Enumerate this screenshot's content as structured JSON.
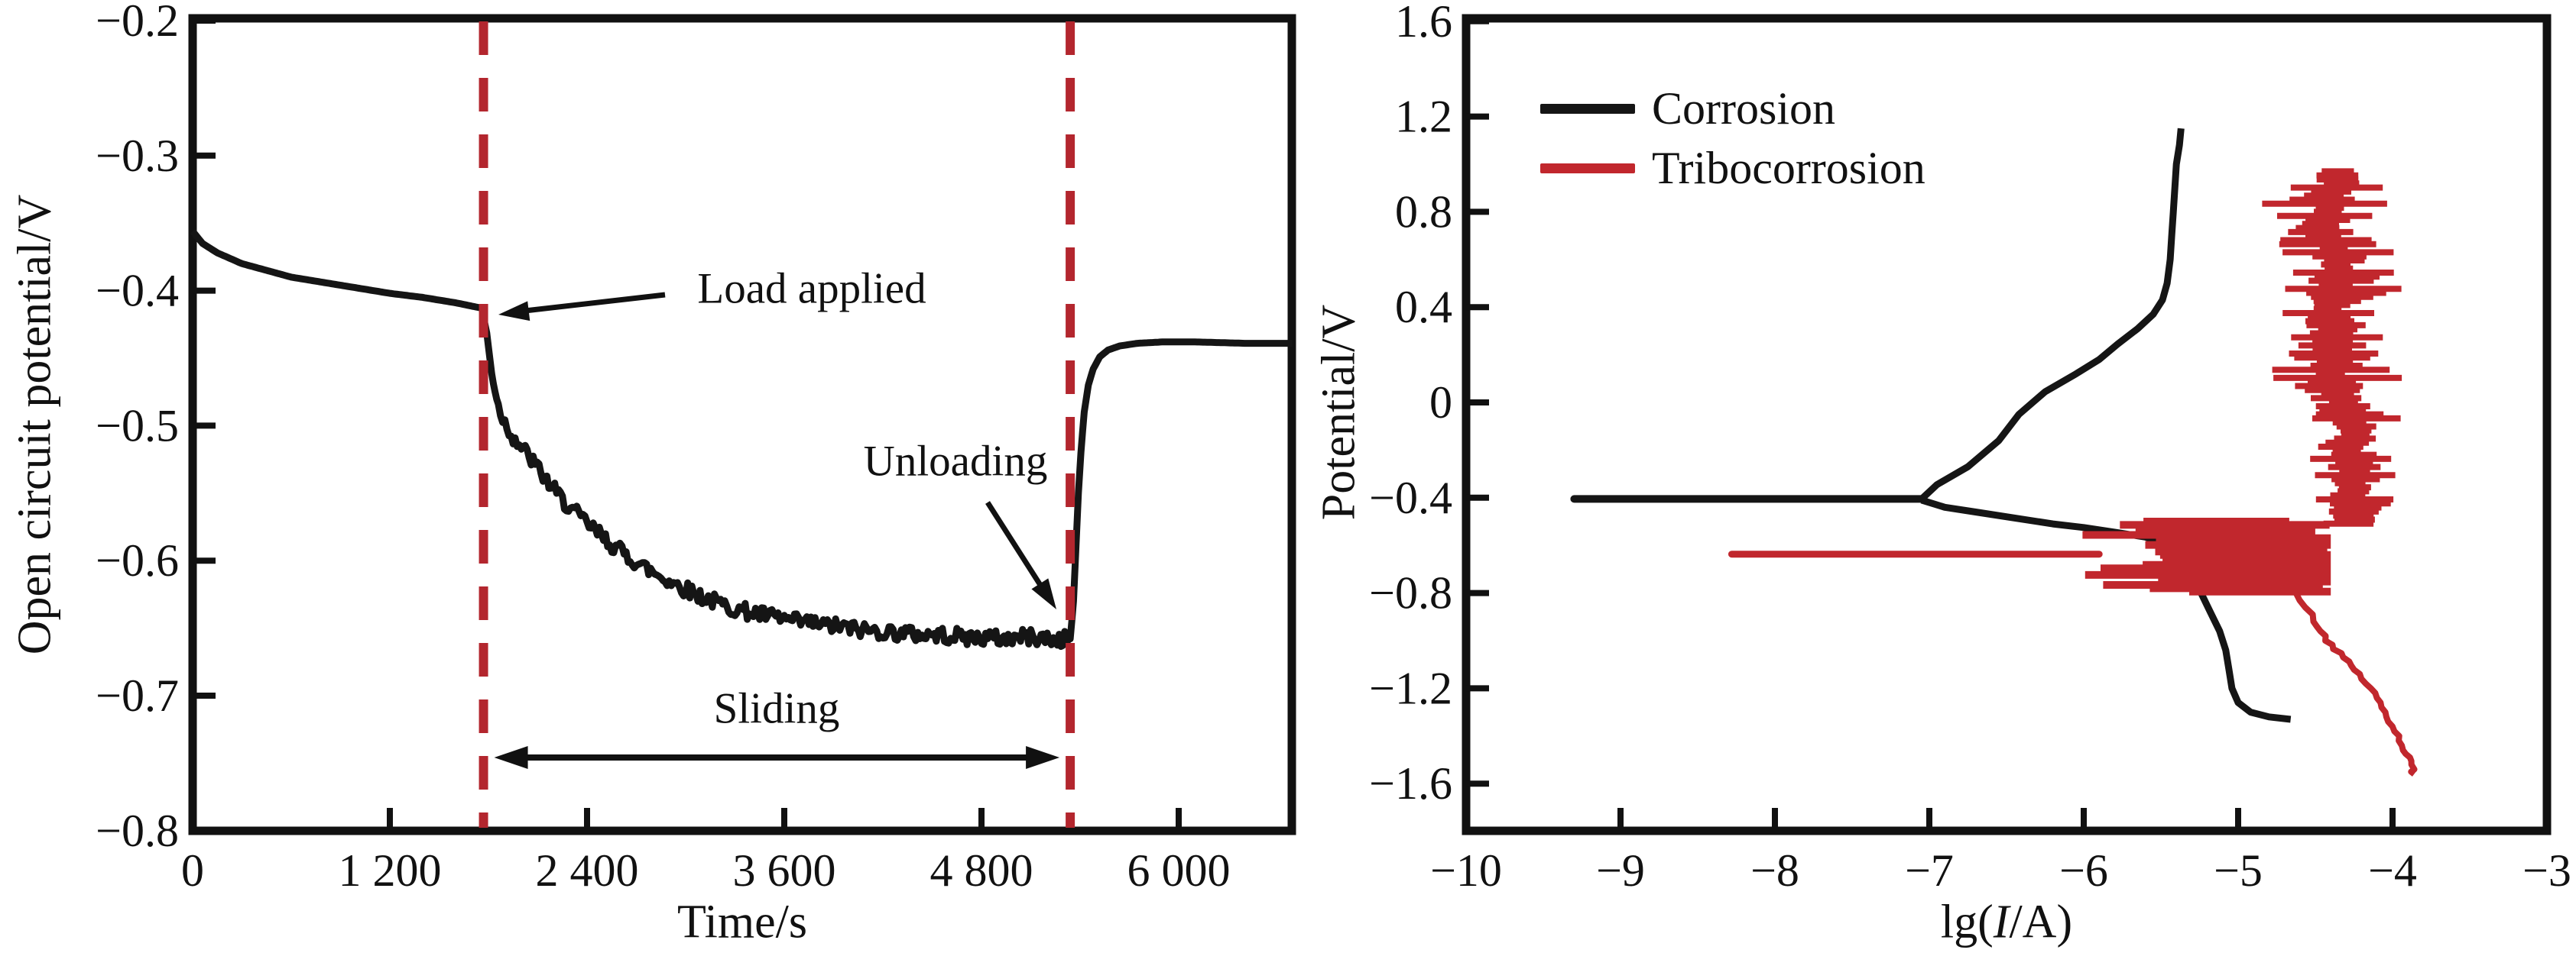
{
  "colors": {
    "curve_black": "#151515",
    "curve_red": "#c1272d",
    "dash_red": "#b3262e",
    "frame": "#111111"
  },
  "chart_data": [
    {
      "type": "line",
      "name": "open-circuit-potential-vs-time",
      "xlabel": "Time/s",
      "ylabel": "Open circuit potential/V",
      "xlim": [
        0,
        6690
      ],
      "ylim": [
        -0.8,
        -0.2
      ],
      "grid": false,
      "x_ticks": [
        {
          "v": 0,
          "label": "0"
        },
        {
          "v": 1200,
          "label": "1 200"
        },
        {
          "v": 2400,
          "label": "2 400"
        },
        {
          "v": 3600,
          "label": "3 600"
        },
        {
          "v": 4800,
          "label": "4 800"
        },
        {
          "v": 6000,
          "label": "6 000"
        }
      ],
      "y_ticks": [
        {
          "v": -0.2,
          "label": "−0.2"
        },
        {
          "v": -0.3,
          "label": "−0.3"
        },
        {
          "v": -0.4,
          "label": "−0.4"
        },
        {
          "v": -0.5,
          "label": "−0.5"
        },
        {
          "v": -0.6,
          "label": "−0.6"
        },
        {
          "v": -0.7,
          "label": "−0.7"
        },
        {
          "v": -0.8,
          "label": "−0.8"
        }
      ],
      "events": {
        "load_time_s": 1770,
        "unload_time_s": 5340
      },
      "annotations": {
        "load": "Load applied",
        "unload": "Unloading",
        "sliding": "Sliding"
      },
      "series": [
        {
          "name": "open-circuit-potential",
          "color_key": "curve_black",
          "points": [
            [
              0,
              -0.356
            ],
            [
              60,
              -0.365
            ],
            [
              150,
              -0.372
            ],
            [
              300,
              -0.38
            ],
            [
              450,
              -0.385
            ],
            [
              600,
              -0.39
            ],
            [
              800,
              -0.394
            ],
            [
              1000,
              -0.398
            ],
            [
              1200,
              -0.402
            ],
            [
              1400,
              -0.405
            ],
            [
              1600,
              -0.409
            ],
            [
              1760,
              -0.413
            ],
            [
              1790,
              -0.432
            ],
            [
              1810,
              -0.452
            ],
            [
              1830,
              -0.468
            ],
            [
              1860,
              -0.485
            ],
            [
              1900,
              -0.498
            ],
            [
              1950,
              -0.508
            ],
            [
              2000,
              -0.516
            ],
            [
              2060,
              -0.525
            ],
            [
              2120,
              -0.535
            ],
            [
              2180,
              -0.545
            ],
            [
              2250,
              -0.555
            ],
            [
              2350,
              -0.567
            ],
            [
              2450,
              -0.578
            ],
            [
              2550,
              -0.588
            ],
            [
              2650,
              -0.597
            ],
            [
              2750,
              -0.605
            ],
            [
              2850,
              -0.612
            ],
            [
              2950,
              -0.618
            ],
            [
              3050,
              -0.624
            ],
            [
              3150,
              -0.629
            ],
            [
              3250,
              -0.634
            ],
            [
              3350,
              -0.637
            ],
            [
              3450,
              -0.64
            ],
            [
              3550,
              -0.642
            ],
            [
              3650,
              -0.645
            ],
            [
              3750,
              -0.646
            ],
            [
              3850,
              -0.648
            ],
            [
              3950,
              -0.649
            ],
            [
              4050,
              -0.651
            ],
            [
              4150,
              -0.652
            ],
            [
              4250,
              -0.653
            ],
            [
              4350,
              -0.654
            ],
            [
              4450,
              -0.655
            ],
            [
              4550,
              -0.655
            ],
            [
              4650,
              -0.656
            ],
            [
              4750,
              -0.657
            ],
            [
              4850,
              -0.657
            ],
            [
              4950,
              -0.658
            ],
            [
              5050,
              -0.656
            ],
            [
              5150,
              -0.657
            ],
            [
              5250,
              -0.659
            ],
            [
              5340,
              -0.658
            ],
            [
              5360,
              -0.63
            ],
            [
              5375,
              -0.59
            ],
            [
              5390,
              -0.55
            ],
            [
              5405,
              -0.52
            ],
            [
              5425,
              -0.49
            ],
            [
              5450,
              -0.47
            ],
            [
              5480,
              -0.458
            ],
            [
              5520,
              -0.449
            ],
            [
              5570,
              -0.444
            ],
            [
              5640,
              -0.441
            ],
            [
              5750,
              -0.439
            ],
            [
              5900,
              -0.438
            ],
            [
              6100,
              -0.438
            ],
            [
              6400,
              -0.439
            ],
            [
              6690,
              -0.439
            ]
          ],
          "noise_segments": [
            {
              "from": 1790,
              "to": 1860,
              "amp": 0.003
            },
            {
              "from": 1860,
              "to": 5340,
              "amp": 0.006
            }
          ]
        }
      ]
    },
    {
      "type": "line",
      "name": "polarization-curves",
      "xlabel_prefix": "lg(",
      "xlabel_italic": "I",
      "xlabel_suffix": "/A)",
      "ylabel": "Potential/V",
      "xlim": [
        -10,
        -3
      ],
      "ylim": [
        -1.6,
        1.6
      ],
      "grid": false,
      "legend_position": "top-left",
      "x_ticks": [
        {
          "v": -10,
          "label": "−10"
        },
        {
          "v": -9,
          "label": "−9"
        },
        {
          "v": -8,
          "label": "−8"
        },
        {
          "v": -7,
          "label": "−7"
        },
        {
          "v": -6,
          "label": "−6"
        },
        {
          "v": -5,
          "label": "−5"
        },
        {
          "v": -4,
          "label": "−4"
        },
        {
          "v": -3,
          "label": "−3"
        }
      ],
      "y_ticks": [
        {
          "v": 1.6,
          "label": "1.6"
        },
        {
          "v": 1.2,
          "label": "1.2"
        },
        {
          "v": 0.8,
          "label": "0.8"
        },
        {
          "v": 0.4,
          "label": "0.4"
        },
        {
          "v": 0,
          "label": "0"
        },
        {
          "v": -0.4,
          "label": "−0.4"
        },
        {
          "v": -0.8,
          "label": "−0.8"
        },
        {
          "v": -1.2,
          "label": "−1.2"
        },
        {
          "v": -1.6,
          "label": "−1.6"
        }
      ],
      "series": [
        {
          "name": "corrosion",
          "label": "Corrosion",
          "color_key": "curve_black",
          "ecorr_V": -0.405,
          "ecorr_spike": {
            "v": -0.405,
            "lg_from": -9.3,
            "lg_to": -7.05
          },
          "anodic_branch": [
            [
              -7.05,
              -0.405
            ],
            [
              -6.95,
              -0.345
            ],
            [
              -6.75,
              -0.27
            ],
            [
              -6.55,
              -0.16
            ],
            [
              -6.42,
              -0.05
            ],
            [
              -6.25,
              0.045
            ],
            [
              -6.05,
              0.12
            ],
            [
              -5.9,
              0.18
            ],
            [
              -5.78,
              0.245
            ],
            [
              -5.65,
              0.31
            ],
            [
              -5.55,
              0.37
            ],
            [
              -5.49,
              0.43
            ],
            [
              -5.46,
              0.5
            ],
            [
              -5.44,
              0.6
            ],
            [
              -5.43,
              0.7
            ],
            [
              -5.42,
              0.8
            ],
            [
              -5.41,
              0.9
            ],
            [
              -5.4,
              1.0
            ],
            [
              -5.38,
              1.08
            ],
            [
              -5.37,
              1.15
            ]
          ],
          "cathodic_branch": [
            [
              -7.05,
              -0.41
            ],
            [
              -6.9,
              -0.44
            ],
            [
              -6.7,
              -0.46
            ],
            [
              -6.45,
              -0.485
            ],
            [
              -6.2,
              -0.51
            ],
            [
              -6.0,
              -0.525
            ],
            [
              -5.8,
              -0.545
            ],
            [
              -5.6,
              -0.565
            ],
            [
              -5.45,
              -0.6
            ],
            [
              -5.35,
              -0.65
            ],
            [
              -5.28,
              -0.72
            ],
            [
              -5.24,
              -0.8
            ],
            [
              -5.18,
              -0.88
            ],
            [
              -5.12,
              -0.96
            ],
            [
              -5.08,
              -1.04
            ],
            [
              -5.06,
              -1.12
            ],
            [
              -5.04,
              -1.2
            ],
            [
              -5.0,
              -1.26
            ],
            [
              -4.92,
              -1.3
            ],
            [
              -4.8,
              -1.32
            ],
            [
              -4.66,
              -1.33
            ]
          ]
        },
        {
          "name": "tribocorrosion",
          "label": "Tribocorrosion",
          "color_key": "curve_red",
          "ecorr_V": -0.637,
          "ecorr_spike": {
            "v": -0.637,
            "lg_from": -8.28,
            "lg_to": -5.9
          },
          "noise_band": {
            "v_from": 0.97,
            "v_to": -0.52,
            "lg_center": -4.32,
            "halfwidth_min": 0.09,
            "halfwidth_max": 0.33
          },
          "noise_blob": {
            "v_from": -0.5,
            "v_to": -0.8,
            "lg_center": -4.95,
            "lg_left_max": -6.35,
            "lg_right_max": -4.4
          },
          "cathodic_tail": [
            [
              -4.62,
              -0.8
            ],
            [
              -4.5,
              -0.92
            ],
            [
              -4.42,
              -1.0
            ],
            [
              -4.32,
              -1.07
            ],
            [
              -4.22,
              -1.14
            ],
            [
              -4.12,
              -1.22
            ],
            [
              -4.05,
              -1.3
            ],
            [
              -3.98,
              -1.38
            ],
            [
              -3.92,
              -1.46
            ],
            [
              -3.88,
              -1.52
            ],
            [
              -3.86,
              -1.56
            ]
          ]
        }
      ]
    }
  ]
}
